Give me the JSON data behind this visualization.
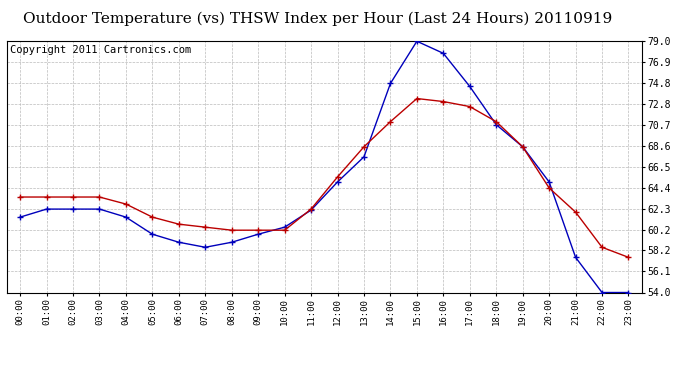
{
  "title": "Outdoor Temperature (vs) THSW Index per Hour (Last 24 Hours) 20110919",
  "copyright": "Copyright 2011 Cartronics.com",
  "hours": [
    "00:00",
    "01:00",
    "02:00",
    "03:00",
    "04:00",
    "05:00",
    "06:00",
    "07:00",
    "08:00",
    "09:00",
    "10:00",
    "11:00",
    "12:00",
    "13:00",
    "14:00",
    "15:00",
    "16:00",
    "17:00",
    "18:00",
    "19:00",
    "20:00",
    "21:00",
    "22:00",
    "23:00"
  ],
  "temp_blue": [
    61.5,
    62.3,
    62.3,
    62.3,
    61.5,
    59.8,
    59.0,
    58.5,
    59.0,
    59.8,
    60.5,
    62.2,
    65.0,
    67.5,
    74.8,
    79.0,
    77.8,
    74.5,
    70.7,
    68.5,
    65.0,
    57.5,
    54.0,
    54.0
  ],
  "temp_red": [
    63.5,
    63.5,
    63.5,
    63.5,
    62.8,
    61.5,
    60.8,
    60.5,
    60.2,
    60.2,
    60.2,
    62.3,
    65.5,
    68.5,
    71.0,
    73.3,
    73.0,
    72.5,
    71.0,
    68.5,
    64.4,
    62.0,
    58.5,
    57.5
  ],
  "ymin": 54.0,
  "ymax": 79.0,
  "yticks": [
    54.0,
    56.1,
    58.2,
    60.2,
    62.3,
    64.4,
    66.5,
    68.6,
    70.7,
    72.8,
    74.8,
    76.9,
    79.0
  ],
  "blue_color": "#0000bb",
  "red_color": "#bb0000",
  "bg_color": "#ffffff",
  "grid_color": "#bbbbbb",
  "title_fontsize": 11,
  "copyright_fontsize": 7.5
}
